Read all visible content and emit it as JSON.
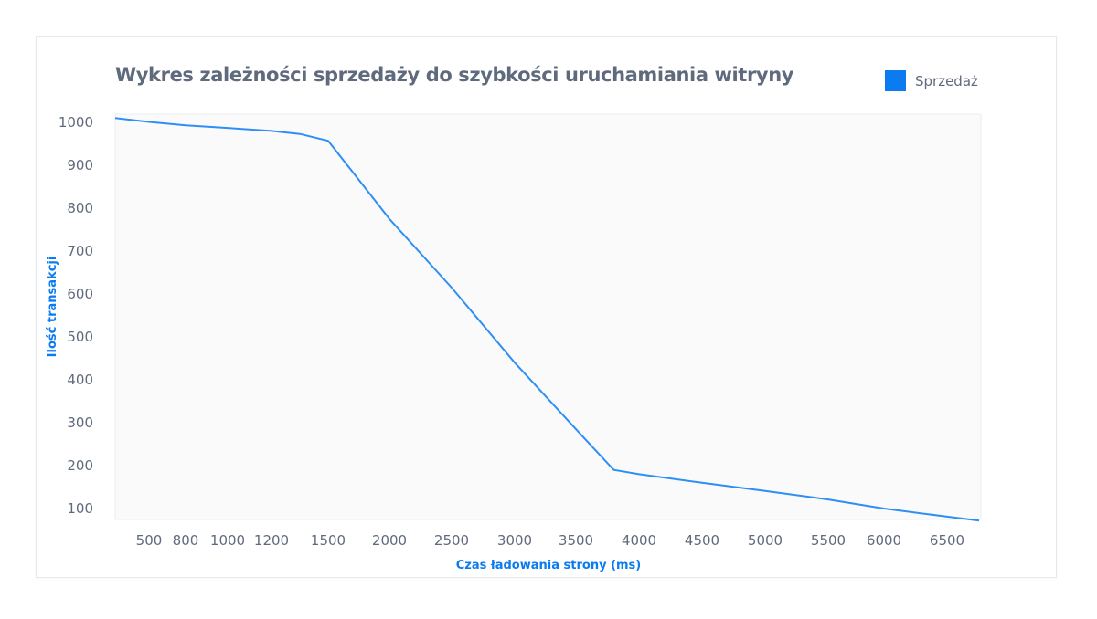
{
  "chart_data": {
    "type": "line",
    "title": "Wykres zależności sprzedaży do szybkości uruchamiania witryny",
    "xlabel": "Czas ładowania strony (ms)",
    "ylabel": "Ilość transakcji",
    "legend_position": "top-right",
    "grid": false,
    "xlim": [
      140,
      6750
    ],
    "ylim": [
      75,
      1015
    ],
    "x_ticks": [
      500,
      800,
      1000,
      1200,
      1500,
      2000,
      2500,
      3000,
      3500,
      4000,
      4500,
      5000,
      5500,
      6000,
      6500
    ],
    "y_ticks": [
      100,
      200,
      300,
      400,
      500,
      600,
      700,
      800,
      900,
      1000
    ],
    "series": [
      {
        "name": "Sprzedaż",
        "color": "#2d8ff5",
        "x": [
          140,
          500,
          800,
          1000,
          1200,
          1350,
          1500,
          2000,
          2500,
          3000,
          3500,
          3800,
          4000,
          4500,
          5000,
          5500,
          6000,
          6500,
          6750
        ],
        "y": [
          1010,
          1001,
          993,
          987,
          980,
          973,
          957,
          775,
          615,
          440,
          285,
          190,
          180,
          160,
          141,
          121,
          100,
          81,
          72
        ]
      }
    ]
  },
  "colors": {
    "accent": "#0b7cf0",
    "line": "#2d8ff5",
    "text": "#5f6a7d",
    "plot_background": "#fafafa"
  }
}
